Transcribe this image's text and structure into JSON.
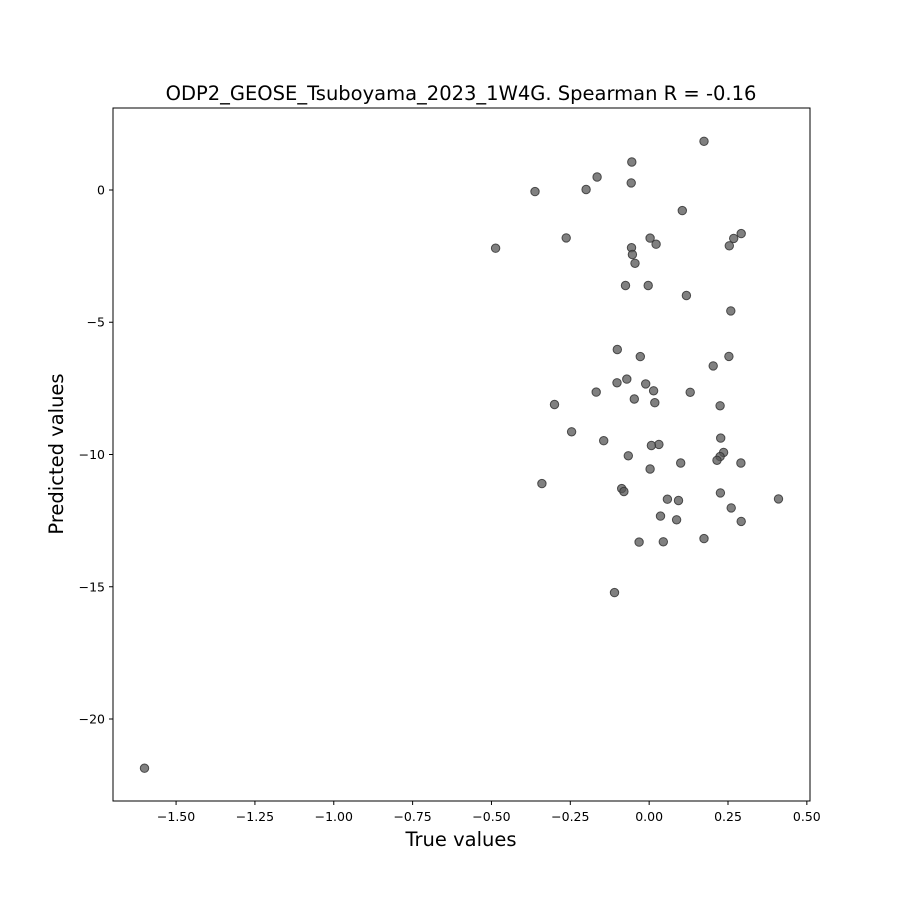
{
  "chart_data": {
    "type": "scatter",
    "title": "ODP2_GEOSE_Tsuboyama_2023_1W4G. Spearman R = -0.16",
    "xlabel": "True values",
    "ylabel": "Predicted values",
    "xlim": [
      -1.7,
      0.51
    ],
    "ylim": [
      -23.1,
      3.1
    ],
    "xticks": [
      -1.5,
      -1.25,
      -1.0,
      -0.75,
      -0.5,
      -0.25,
      0.0,
      0.25,
      0.5
    ],
    "xtick_labels": [
      "−1.50",
      "−1.25",
      "−1.00",
      "−0.75",
      "−0.50",
      "−0.25",
      "0.00",
      "0.25",
      "0.50"
    ],
    "yticks": [
      0,
      -5,
      -10,
      -15,
      -20
    ],
    "ytick_labels": [
      "0",
      "−5",
      "−10",
      "−15",
      "−20"
    ],
    "grid": false,
    "marker_color": "#555555",
    "marker_alpha": 0.75,
    "points": [
      {
        "x": 0.174,
        "y": 1.84
      },
      {
        "x": -0.055,
        "y": 1.06
      },
      {
        "x": -0.165,
        "y": 0.49
      },
      {
        "x": -0.057,
        "y": 0.27
      },
      {
        "x": -0.2,
        "y": 0.02
      },
      {
        "x": -0.362,
        "y": -0.06
      },
      {
        "x": 0.105,
        "y": -0.78
      },
      {
        "x": 0.292,
        "y": -1.65
      },
      {
        "x": 0.268,
        "y": -1.83
      },
      {
        "x": 0.003,
        "y": -1.82
      },
      {
        "x": -0.263,
        "y": -1.81
      },
      {
        "x": 0.022,
        "y": -2.05
      },
      {
        "x": 0.254,
        "y": -2.11
      },
      {
        "x": -0.056,
        "y": -2.18
      },
      {
        "x": -0.487,
        "y": -2.2
      },
      {
        "x": -0.053,
        "y": -2.44
      },
      {
        "x": -0.045,
        "y": -2.77
      },
      {
        "x": -0.075,
        "y": -3.61
      },
      {
        "x": -0.003,
        "y": -3.61
      },
      {
        "x": 0.118,
        "y": -3.99
      },
      {
        "x": 0.259,
        "y": -4.57
      },
      {
        "x": -0.101,
        "y": -6.03
      },
      {
        "x": -0.028,
        "y": -6.3
      },
      {
        "x": 0.253,
        "y": -6.29
      },
      {
        "x": 0.203,
        "y": -6.65
      },
      {
        "x": -0.071,
        "y": -7.15
      },
      {
        "x": -0.102,
        "y": -7.29
      },
      {
        "x": -0.011,
        "y": -7.33
      },
      {
        "x": 0.014,
        "y": -7.59
      },
      {
        "x": 0.13,
        "y": -7.65
      },
      {
        "x": -0.168,
        "y": -7.64
      },
      {
        "x": -0.047,
        "y": -7.9
      },
      {
        "x": 0.018,
        "y": -8.04
      },
      {
        "x": -0.3,
        "y": -8.11
      },
      {
        "x": 0.225,
        "y": -8.16
      },
      {
        "x": -0.246,
        "y": -9.14
      },
      {
        "x": 0.227,
        "y": -9.38
      },
      {
        "x": -0.144,
        "y": -9.48
      },
      {
        "x": 0.031,
        "y": -9.62
      },
      {
        "x": 0.007,
        "y": -9.66
      },
      {
        "x": 0.236,
        "y": -9.92
      },
      {
        "x": 0.225,
        "y": -10.08
      },
      {
        "x": -0.066,
        "y": -10.05
      },
      {
        "x": 0.215,
        "y": -10.22
      },
      {
        "x": 0.1,
        "y": -10.32
      },
      {
        "x": 0.291,
        "y": -10.32
      },
      {
        "x": 0.003,
        "y": -10.55
      },
      {
        "x": -0.34,
        "y": -11.1
      },
      {
        "x": -0.087,
        "y": -11.29
      },
      {
        "x": -0.08,
        "y": -11.4
      },
      {
        "x": 0.226,
        "y": -11.45
      },
      {
        "x": 0.058,
        "y": -11.69
      },
      {
        "x": 0.093,
        "y": -11.74
      },
      {
        "x": 0.41,
        "y": -11.68
      },
      {
        "x": 0.26,
        "y": -12.02
      },
      {
        "x": 0.036,
        "y": -12.33
      },
      {
        "x": 0.087,
        "y": -12.47
      },
      {
        "x": 0.292,
        "y": -12.53
      },
      {
        "x": 0.174,
        "y": -13.18
      },
      {
        "x": -0.032,
        "y": -13.31
      },
      {
        "x": 0.045,
        "y": -13.3
      },
      {
        "x": -0.11,
        "y": -15.22
      },
      {
        "x": -1.6,
        "y": -21.86
      }
    ]
  }
}
